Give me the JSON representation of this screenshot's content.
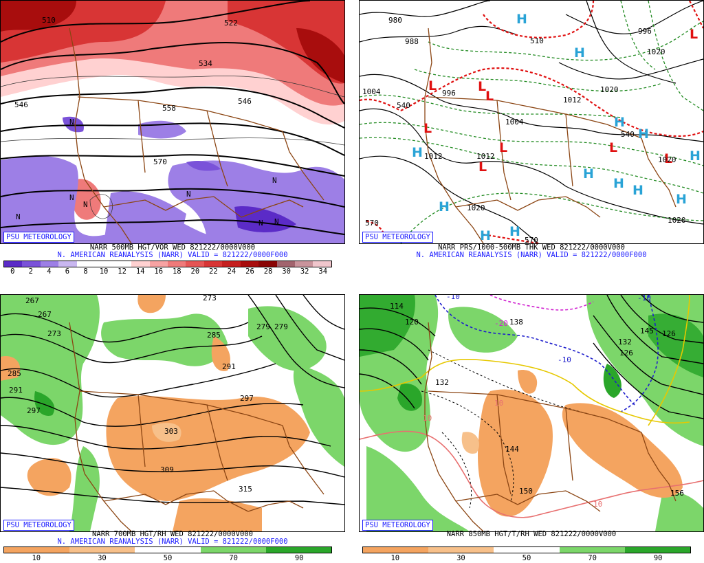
{
  "panels": [
    {
      "id": "p1",
      "badge": "PSU METEOROLOGY",
      "caption_line1": "NARR 500MB HGT/VOR WED 821222/0000V000",
      "caption_line2": "N. AMERICAN REANALYSIS (NARR) VALID = 821222/0000F000",
      "contour_labels": [
        "510",
        "522",
        "534",
        "546",
        "558",
        "546",
        "570"
      ],
      "colorbar_ticks": [
        "0",
        "2",
        "4",
        "6",
        "8",
        "10",
        "12",
        "14",
        "16",
        "18",
        "20",
        "22",
        "24",
        "26",
        "28",
        "30",
        "32",
        "34"
      ],
      "colorbar_colors": [
        "#5b2bc7",
        "#7a52d9",
        "#9d7fe6",
        "#c9b7f0",
        "#ffffff",
        "#ffffff",
        "#ffffff",
        "#ffd1d1",
        "#f7a3a3",
        "#ef7a7a",
        "#e55555",
        "#d83535",
        "#c51f1f",
        "#a80d0d",
        "#8a0505",
        "#a2646e",
        "#c9949c",
        "#f0c6cc"
      ]
    },
    {
      "id": "p2",
      "badge": "PSU METEOROLOGY",
      "caption_line1": "NARR PRS/1000-500MB THK WED 821222/0000V000",
      "caption_line2": "N. AMERICAN REANALYSIS (NARR) VALID = 821222/0000F000",
      "contour_labels": [
        "980",
        "988",
        "996",
        "1004",
        "1004",
        "1012",
        "1012",
        "1020",
        "1020",
        "1020",
        "1012",
        "996",
        "1020",
        "1020"
      ],
      "thickness_labels": [
        "510",
        "540",
        "540",
        "570",
        "570"
      ],
      "high_marker": "H",
      "low_marker": "L"
    },
    {
      "id": "p3",
      "badge": "PSU METEOROLOGY",
      "caption_line1": "NARR 700MB HGT/RH WED 821222/0000V000",
      "caption_line2": "N. AMERICAN REANALYSIS (NARR) VALID = 821222/0000F000",
      "contour_labels": [
        "267",
        "267",
        "273",
        "273",
        "279",
        "279",
        "285",
        "285",
        "291",
        "291",
        "297",
        "297",
        "303",
        "309",
        "315"
      ],
      "colorbar_ticks": [
        "10",
        "30",
        "50",
        "70",
        "90"
      ],
      "colorbar_colors": [
        "#f4a460",
        "#f7c08a",
        "#ffffff",
        "#7cd66a",
        "#2aa62a"
      ]
    },
    {
      "id": "p4",
      "badge": "PSU METEOROLOGY",
      "caption_line1": "NARR 850MB HGT/T/RH WED 821222/0000V000",
      "contour_labels": [
        "114",
        "120",
        "126",
        "132",
        "138",
        "144",
        "150",
        "156",
        "132",
        "126",
        "-10",
        "-10",
        "-10",
        "-20",
        "10",
        "10",
        "10",
        "145"
      ],
      "colorbar_ticks": [
        "10",
        "30",
        "50",
        "70",
        "90"
      ],
      "colorbar_colors": [
        "#f4a460",
        "#f7c08a",
        "#ffffff",
        "#7cd66a",
        "#2aa62a"
      ]
    }
  ]
}
